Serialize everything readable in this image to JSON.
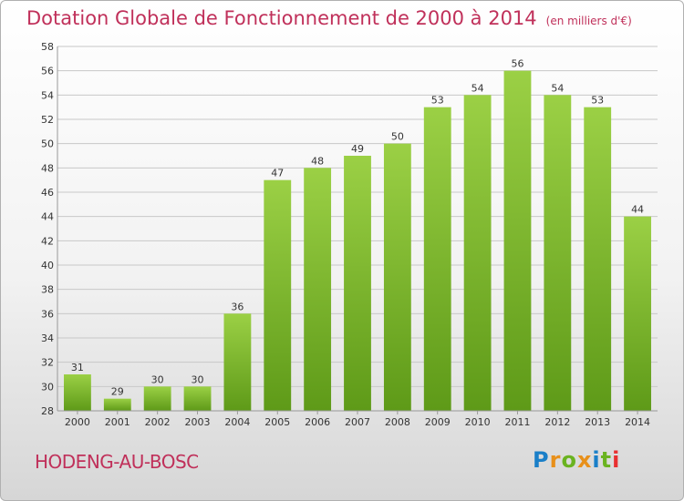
{
  "header": {
    "title": "Dotation Globale de Fonctionnement de 2000 à 2014",
    "unit": "(en milliers d'€)"
  },
  "footer": {
    "place": "HODENG-AU-BOSC",
    "brand": "Proxiti",
    "brand_colors": [
      "#1a7fc8",
      "#e8901a",
      "#6ab320",
      "#e8901a",
      "#1a7fc8",
      "#6ab320",
      "#e83030"
    ]
  },
  "colors": {
    "title": "#c0305a",
    "bar_light": "#9bd045",
    "bar_dark": "#5e9a18",
    "grid": "#c8c8c8"
  },
  "chart_data": {
    "type": "bar",
    "title": "Dotation Globale de Fonctionnement de 2000 à 2014",
    "subtitle": "(en milliers d'€)",
    "categories": [
      "2000",
      "2001",
      "2002",
      "2003",
      "2004",
      "2005",
      "2006",
      "2007",
      "2008",
      "2009",
      "2010",
      "2011",
      "2012",
      "2013",
      "2014"
    ],
    "values": [
      31,
      29,
      30,
      30,
      36,
      47,
      48,
      49,
      50,
      53,
      54,
      56,
      54,
      53,
      44
    ],
    "ylim": [
      28,
      58
    ],
    "yticks": [
      28,
      30,
      32,
      34,
      36,
      38,
      40,
      42,
      44,
      46,
      48,
      50,
      52,
      54,
      56,
      58
    ],
    "grid": true,
    "data_labels": true
  }
}
